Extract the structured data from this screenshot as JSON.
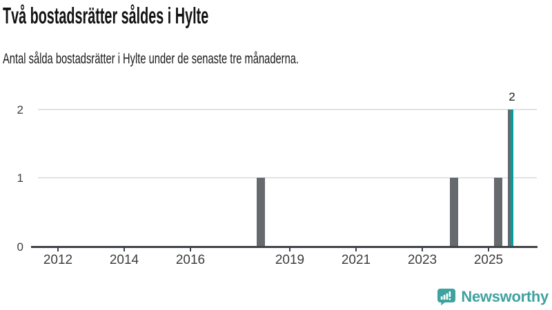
{
  "header": {
    "title": "Två bostadsrätter såldes i Hylte",
    "subtitle": "Antal sålda bostadsrätter i Hylte under de senaste tre månaderna."
  },
  "chart_data": {
    "type": "bar",
    "title": "Två bostadsrätter såldes i Hylte",
    "subtitle": "Antal sålda bostadsrätter i Hylte under de senaste tre månaderna.",
    "x_unit": "month",
    "x_axis": {
      "tick_labels": [
        "2012",
        "2014",
        "2016",
        "2019",
        "2021",
        "2023",
        "2025"
      ],
      "tick_years": [
        2012,
        2014,
        2016,
        2019,
        2021,
        2023,
        2025
      ],
      "range_years": [
        2011.2,
        2026.5
      ]
    },
    "y_axis": {
      "tick_labels": [
        "0",
        "1",
        "2"
      ],
      "tick_values": [
        0,
        1,
        2
      ],
      "range": [
        0,
        2
      ],
      "grid": true
    },
    "legend": "none",
    "bars": [
      {
        "month": "2018-01",
        "value": 1,
        "highlight": false
      },
      {
        "month": "2018-02",
        "value": 1,
        "highlight": false
      },
      {
        "month": "2018-03",
        "value": 1,
        "highlight": false
      },
      {
        "month": "2023-11",
        "value": 1,
        "highlight": false
      },
      {
        "month": "2023-12",
        "value": 1,
        "highlight": false
      },
      {
        "month": "2024-01",
        "value": 1,
        "highlight": false
      },
      {
        "month": "2025-03",
        "value": 1,
        "highlight": false
      },
      {
        "month": "2025-04",
        "value": 1,
        "highlight": false
      },
      {
        "month": "2025-05",
        "value": 1,
        "highlight": false
      },
      {
        "month": "2025-08",
        "value": 2,
        "highlight": false
      },
      {
        "month": "2025-09",
        "value": 2,
        "highlight": true,
        "label": "2"
      }
    ],
    "colors": {
      "bar": "#66696e",
      "highlight": "#009e9e",
      "axis": "#3e4145",
      "grid": "#e2e2e2",
      "tick_text": "#3c3c3c"
    }
  },
  "footer": {
    "brand": "Newsworthy",
    "brand_color": "#3fa29f",
    "logo_icon": "newsworthy-bar-chart-bubble-icon"
  }
}
